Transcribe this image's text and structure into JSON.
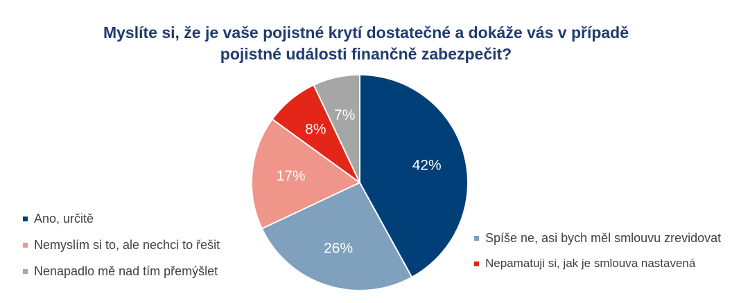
{
  "chart_data": {
    "type": "pie",
    "title": [
      "Myslíte si, že je vaše pojistné krytí dostatečné a dokáže vás v případě",
      "pojistné události finančně zabezpečit?"
    ],
    "slices": [
      {
        "label": "Ano, určitě",
        "value": 42,
        "display": "42%",
        "color": "#003f77"
      },
      {
        "label": "Spíše ne, asi bych měl smlouvu zrevidovat",
        "value": 26,
        "display": "26%",
        "color": "#7fa1bd"
      },
      {
        "label": "Nemyslím si to, ale nechci to řešit",
        "value": 17,
        "display": "17%",
        "color": "#ef958a"
      },
      {
        "label": "Nepamatuji si, jak je smlouva nastavená",
        "value": 8,
        "display": "8%",
        "color": "#e32618"
      },
      {
        "label": "Nenapadlo mě nad tím přemýšlet",
        "value": 7,
        "display": "7%",
        "color": "#a6a6a6"
      }
    ],
    "start_angle": "12 o'clock",
    "direction": "clockwise",
    "legend_placement": "split left and right"
  }
}
